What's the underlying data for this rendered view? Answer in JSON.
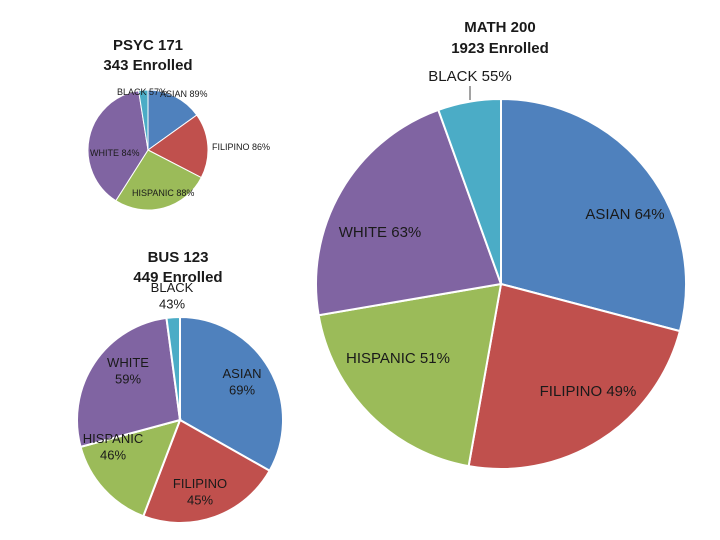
{
  "chart_data": [
    {
      "type": "pie",
      "title_line1": "PSYC 171",
      "title_line2": "343 Enrolled",
      "categories": [
        "ASIAN",
        "FILIPINO",
        "HISPANIC",
        "WHITE",
        "BLACK"
      ],
      "labels": [
        "ASIAN 89%",
        "FILIPINO 86%",
        "HISPANIC 88%",
        "WHITE 84%",
        "BLACK 57%"
      ],
      "values": [
        0.151,
        0.175,
        0.264,
        0.385,
        0.025
      ]
    },
    {
      "type": "pie",
      "title_line1": "BUS 123",
      "title_line2": "449 Enrolled",
      "categories": [
        "ASIAN",
        "FILIPINO",
        "HISPANIC",
        "WHITE",
        "BLACK"
      ],
      "labels": [
        "ASIAN 69%",
        "FILIPINO 45%",
        "HISPANIC 46%",
        "WHITE 59%",
        "BLACK 43%"
      ],
      "values": [
        0.332,
        0.226,
        0.15,
        0.271,
        0.021
      ]
    },
    {
      "type": "pie",
      "title_line1": "MATH 200",
      "title_line2": "1923 Enrolled",
      "categories": [
        "ASIAN",
        "FILIPINO",
        "HISPANIC",
        "WHITE",
        "BLACK"
      ],
      "labels": [
        "ASIAN 64%",
        "FILIPINO 49%",
        "HISPANIC 51%",
        "WHITE 63%",
        "BLACK 55%"
      ],
      "values": [
        0.291,
        0.237,
        0.195,
        0.222,
        0.055
      ]
    }
  ],
  "colors": {
    "ASIAN": "#4f81bd",
    "FILIPINO": "#c0504d",
    "HISPANIC": "#9bbb59",
    "WHITE": "#8064a2",
    "BLACK": "#4bacc6"
  }
}
